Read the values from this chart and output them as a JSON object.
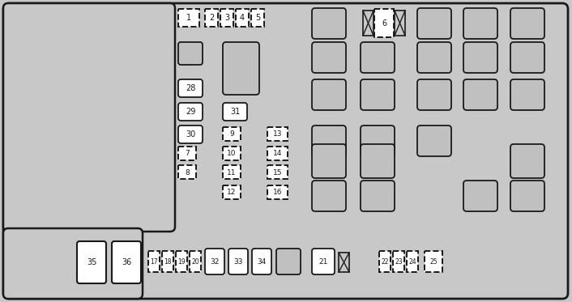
{
  "bg_color": "#c8c8c8",
  "white": "#ffffff",
  "black": "#1a1a1a",
  "gray_fuse": "#c0c0c0",
  "fig_width": 7.06,
  "fig_height": 3.73,
  "dpi": 100
}
